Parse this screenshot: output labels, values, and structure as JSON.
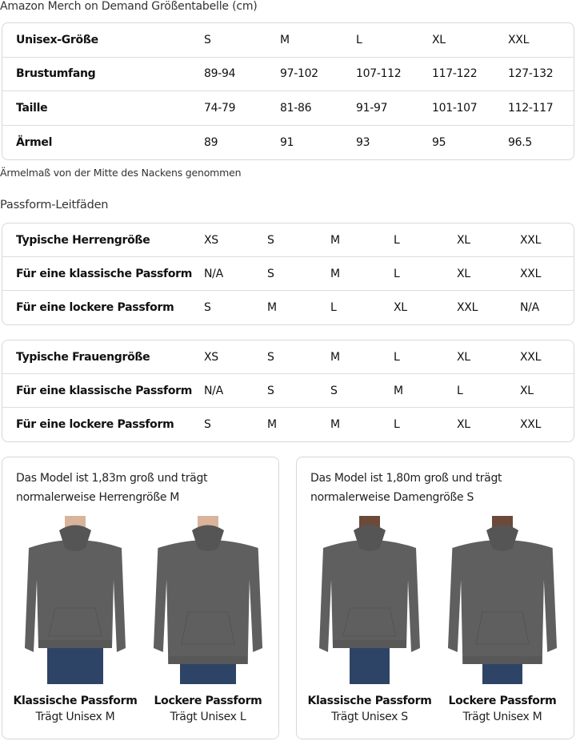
{
  "size_chart": {
    "title": "Amazon Merch on Demand Größentabelle (cm)",
    "rows": [
      {
        "label": "Unisex-Größe",
        "values": [
          "S",
          "M",
          "L",
          "XL",
          "XXL"
        ]
      },
      {
        "label": "Brustumfang",
        "values": [
          "89-94",
          "97-102",
          "107-112",
          "117-122",
          "127-132"
        ]
      },
      {
        "label": "Taille",
        "values": [
          "74-79",
          "81-86",
          "91-97",
          "101-107",
          "112-117"
        ]
      },
      {
        "label": "Ärmel",
        "values": [
          "89",
          "91",
          "93",
          "95",
          "96.5"
        ]
      }
    ],
    "note": "Ärmelmaß von der Mitte des Nackens genommen"
  },
  "fit_guide": {
    "title": "Passform-Leitfäden",
    "men": [
      {
        "label": "Typische Herrengröße",
        "values": [
          "XS",
          "S",
          "M",
          "L",
          "XL",
          "XXL"
        ]
      },
      {
        "label": "Für eine klassische Passform",
        "values": [
          "N/A",
          "S",
          "M",
          "L",
          "XL",
          "XXL"
        ]
      },
      {
        "label": "Für eine lockere Passform",
        "values": [
          "S",
          "M",
          "L",
          "XL",
          "XXL",
          "N/A"
        ]
      }
    ],
    "women": [
      {
        "label": "Typische Frauengröße",
        "values": [
          "XS",
          "S",
          "M",
          "L",
          "XL",
          "XXL"
        ]
      },
      {
        "label": "Für eine klassische Passform",
        "values": [
          "N/A",
          "S",
          "S",
          "M",
          "L",
          "XL"
        ]
      },
      {
        "label": "Für eine lockere Passform",
        "values": [
          "S",
          "M",
          "M",
          "L",
          "XL",
          "XXL"
        ]
      }
    ]
  },
  "models": [
    {
      "desc1": "Das Model ist 1,83m groß und trägt",
      "desc2": "normalerweise Herrengröße M",
      "fits": [
        {
          "title": "Klassische Passform",
          "wears": "Trägt Unisex M"
        },
        {
          "title": "Lockere Passform",
          "wears": "Trägt Unisex L"
        }
      ]
    },
    {
      "desc1": "Das Model ist 1,80m groß und trägt",
      "desc2": "normalerweise Damengröße S",
      "fits": [
        {
          "title": "Klassische Passform",
          "wears": "Trägt Unisex S"
        },
        {
          "title": "Lockere Passform",
          "wears": "Trägt Unisex M"
        }
      ]
    }
  ],
  "colors": {
    "hoodie": "#5f5f5f",
    "jeans": "#2e4466",
    "border": "#d5d9d9"
  }
}
